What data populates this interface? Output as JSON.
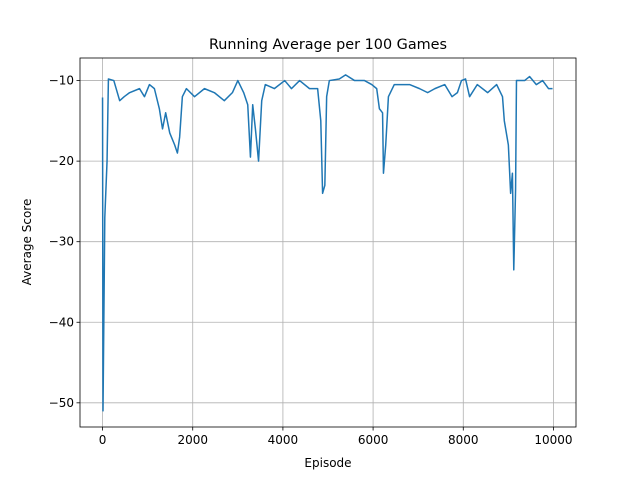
{
  "chart_data": {
    "type": "line",
    "title": "Running Average per 100 Games",
    "xlabel": "Episode",
    "ylabel": "Average Score",
    "color": "#1f77b4",
    "grid": true,
    "xlim": [
      -500,
      10500
    ],
    "ylim": [
      -53,
      -7.2
    ],
    "xticks": [
      0,
      2000,
      4000,
      6000,
      8000,
      10000
    ],
    "yticks": [
      {
        "value": -50,
        "label": "−50"
      },
      {
        "value": -40,
        "label": "−40"
      },
      {
        "value": -30,
        "label": "−30"
      },
      {
        "value": -20,
        "label": "−20"
      },
      {
        "value": -10,
        "label": "−10"
      }
    ],
    "x": [
      0,
      10,
      20,
      50,
      100,
      130,
      250,
      380,
      480,
      600,
      820,
      930,
      1040,
      1150,
      1260,
      1330,
      1400,
      1490,
      1600,
      1660,
      1710,
      1770,
      1860,
      2040,
      2260,
      2480,
      2700,
      2880,
      3000,
      3130,
      3220,
      3280,
      3330,
      3390,
      3460,
      3530,
      3610,
      3810,
      4040,
      4190,
      4370,
      4590,
      4770,
      4840,
      4880,
      4930,
      4970,
      5030,
      5250,
      5390,
      5590,
      5810,
      5970,
      6080,
      6140,
      6210,
      6230,
      6280,
      6340,
      6470,
      6810,
      7030,
      7210,
      7370,
      7590,
      7750,
      7870,
      7960,
      8050,
      8140,
      8310,
      8540,
      8740,
      8870,
      8910,
      9000,
      9050,
      9090,
      9120,
      9160,
      9180,
      9360,
      9470,
      9620,
      9760,
      9890,
      9980
    ],
    "values": [
      -12.1,
      -51,
      -45,
      -27,
      -20,
      -9.8,
      -10,
      -12.5,
      -12,
      -11.5,
      -11,
      -12,
      -10.5,
      -11,
      -13.5,
      -16,
      -14,
      -16.5,
      -18,
      -19,
      -17,
      -12,
      -11,
      -12,
      -11,
      -11.5,
      -12.5,
      -11.5,
      -10,
      -11.5,
      -13,
      -19.5,
      -13,
      -16,
      -20,
      -12.5,
      -10.5,
      -11,
      -10,
      -11,
      -10,
      -11,
      -11,
      -15,
      -24,
      -23,
      -12,
      -10,
      -9.8,
      -9.3,
      -10,
      -10,
      -10.5,
      -11,
      -13.5,
      -14,
      -21.5,
      -18,
      -12,
      -10.5,
      -10.5,
      -11,
      -11.5,
      -11,
      -10.5,
      -12,
      -11.5,
      -10,
      -9.8,
      -12,
      -10.5,
      -11.5,
      -10.5,
      -12,
      -15,
      -18,
      -24,
      -21.5,
      -33.5,
      -23.5,
      -10,
      -10,
      -9.5,
      -10.5,
      -10,
      -11,
      -11
    ]
  }
}
